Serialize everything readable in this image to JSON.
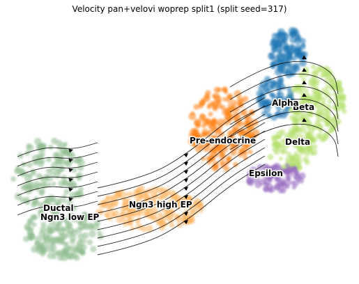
{
  "chart_data": {
    "type": "scatter",
    "title": "Velocity pan+velovi woprep split1 (split seed=317)",
    "xlabel": "",
    "ylabel": "",
    "grid": false,
    "axes_visible": false,
    "legend": "on data",
    "overlay": "velocity streamlines",
    "clusters": [
      {
        "name": "Ductal",
        "color": "#8fbc8f"
      },
      {
        "name": "Ngn3 low EP",
        "color": "#8fbc8f"
      },
      {
        "name": "Ngn3 high EP",
        "color": "#fdb462"
      },
      {
        "name": "Pre-endocrine",
        "color": "#ff7f0e"
      },
      {
        "name": "Beta",
        "color": "#b3de69"
      },
      {
        "name": "Alpha",
        "color": "#1f77b4"
      },
      {
        "name": "Delta",
        "color": "#b3de69"
      },
      {
        "name": "Epsilon",
        "color": "#9467bd"
      }
    ]
  }
}
